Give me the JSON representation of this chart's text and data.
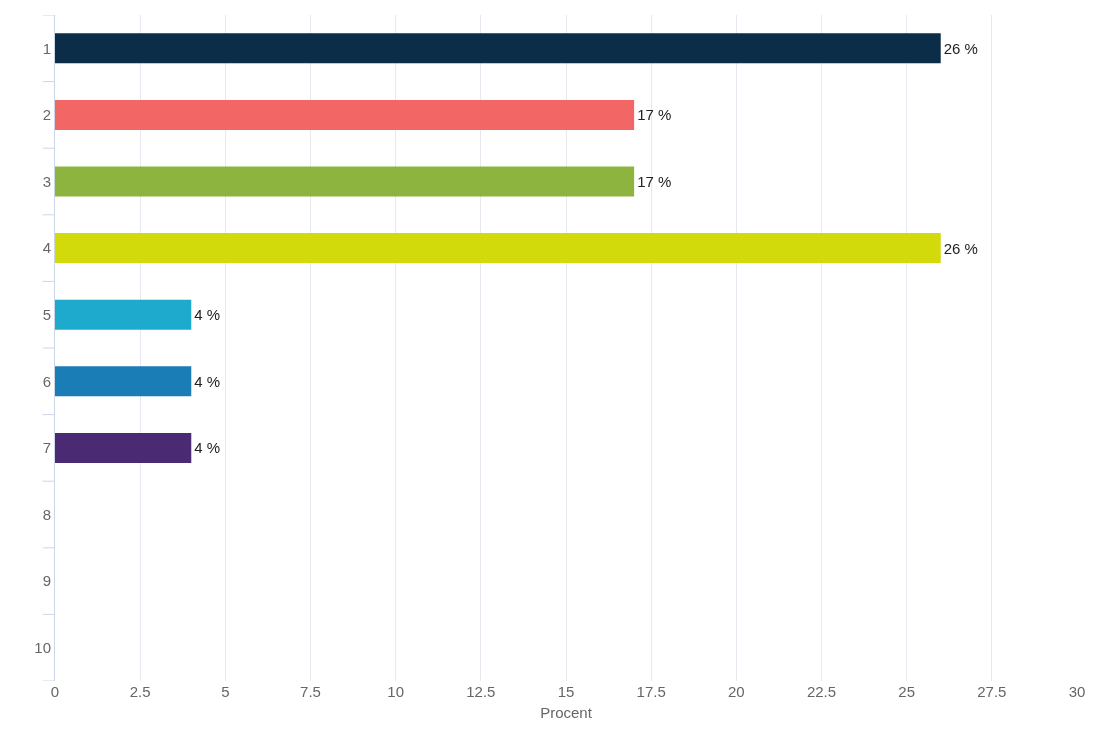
{
  "chart_data": {
    "type": "bar",
    "orientation": "horizontal",
    "xlabel": "Procent",
    "categories": [
      "1",
      "2",
      "3",
      "4",
      "5",
      "6",
      "7",
      "8",
      "9",
      "10"
    ],
    "values": [
      26,
      17,
      17,
      26,
      4,
      4,
      4,
      null,
      null,
      null
    ],
    "colors": [
      "#0b2d48",
      "#f26666",
      "#8db43e",
      "#d3da0c",
      "#1eaacd",
      "#1a7db5",
      "#4a2a73",
      "#888888",
      "#888888",
      "#888888"
    ],
    "value_labels": [
      "26 %",
      "17 %",
      "17 %",
      "26 %",
      "4 %",
      "4 %",
      "4 %",
      null,
      null,
      null
    ],
    "xlim": [
      0,
      30
    ],
    "xticks": [
      0,
      2.5,
      5,
      7.5,
      10,
      12.5,
      15,
      17.5,
      20,
      22.5,
      25,
      27.5,
      30
    ],
    "grid": "x",
    "legend": false
  }
}
